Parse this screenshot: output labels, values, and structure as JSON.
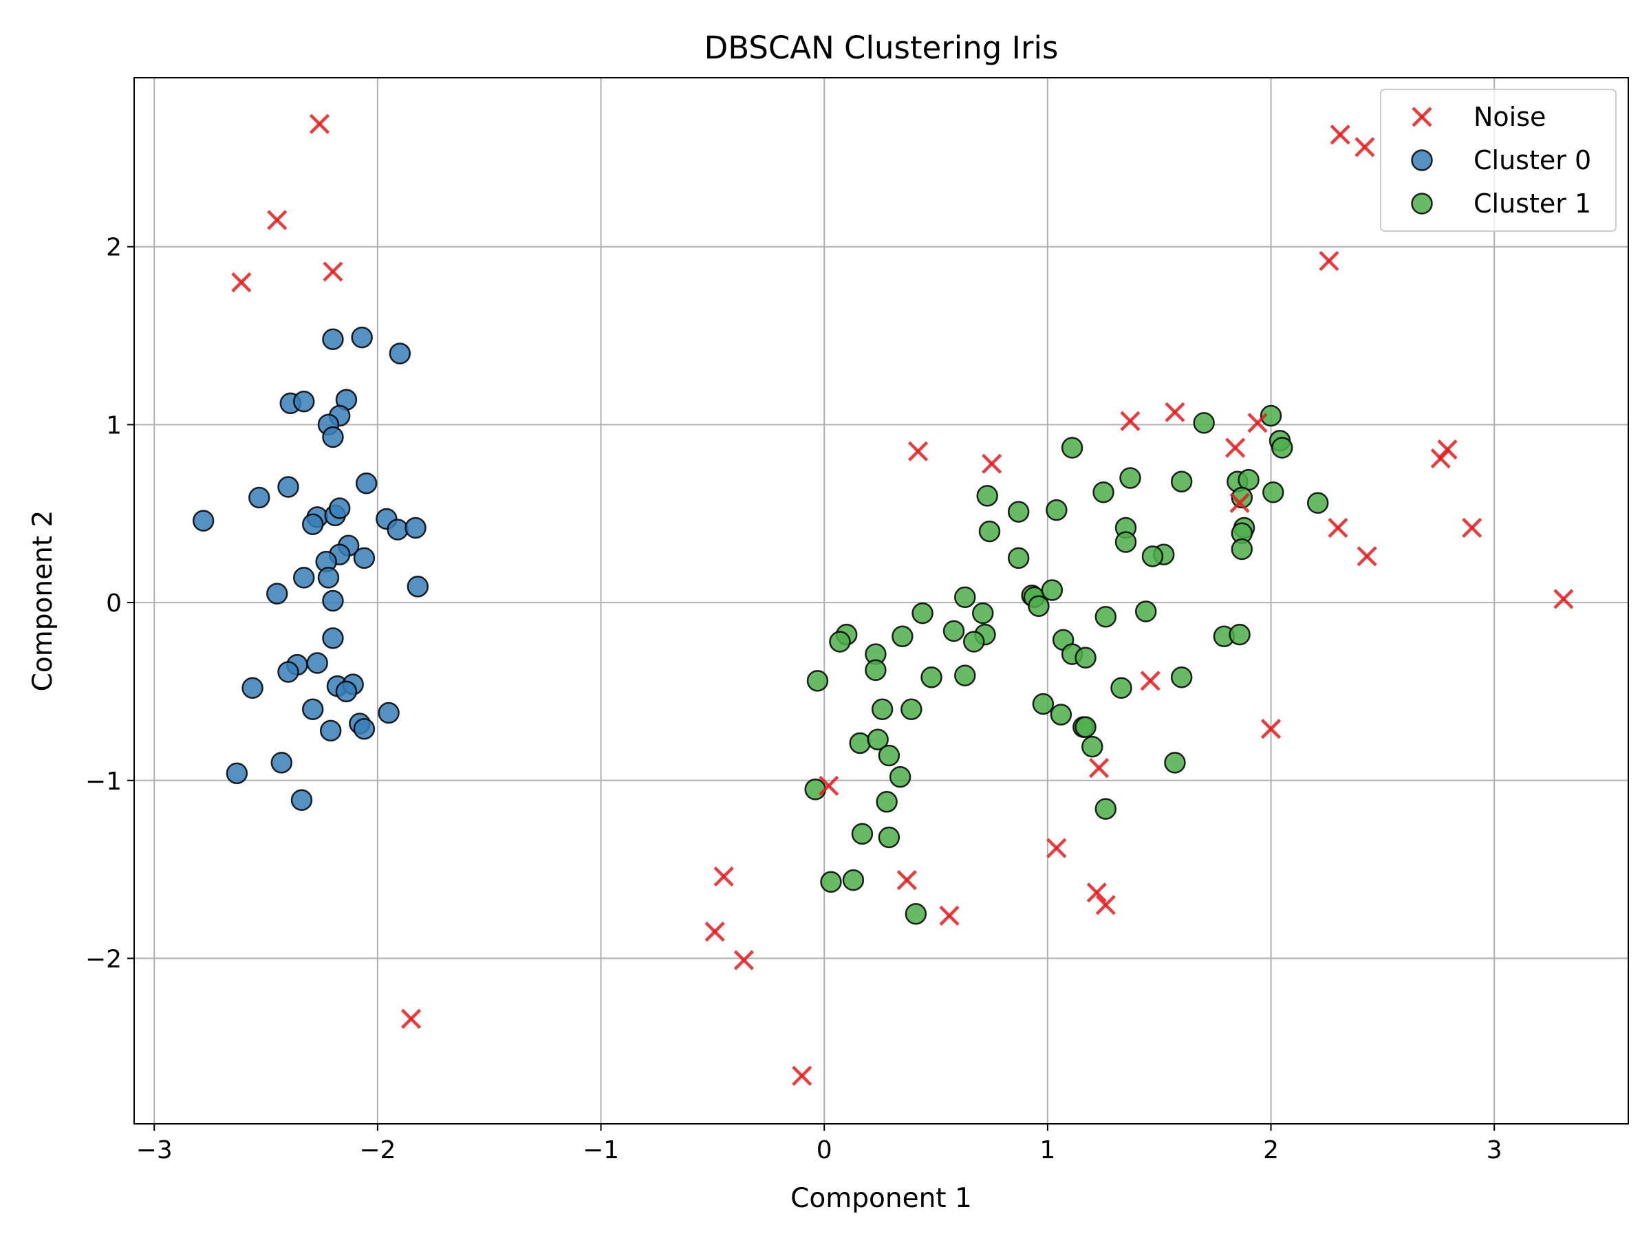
{
  "chart_data": {
    "type": "scatter",
    "title": "DBSCAN Clustering Iris",
    "xlabel": "Component 1",
    "ylabel": "Component 2",
    "xlim": [
      -3.09,
      3.6
    ],
    "ylim": [
      -2.93,
      2.95
    ],
    "xticks": [
      -3,
      -2,
      -1,
      0,
      1,
      2,
      3
    ],
    "yticks": [
      -2,
      -1,
      0,
      1,
      2
    ],
    "grid": true,
    "legend_position": "top-right",
    "series": [
      {
        "name": "Noise",
        "marker": "x",
        "color": "#e41a1c",
        "points": [
          [
            -2.26,
            2.69
          ],
          [
            -2.45,
            2.15
          ],
          [
            -2.61,
            1.8
          ],
          [
            -2.2,
            1.86
          ],
          [
            -1.85,
            -2.34
          ],
          [
            0.42,
            0.85
          ],
          [
            0.75,
            0.78
          ],
          [
            1.37,
            1.02
          ],
          [
            1.57,
            1.07
          ],
          [
            1.84,
            0.87
          ],
          [
            1.94,
            1.01
          ],
          [
            1.86,
            0.56
          ],
          [
            2.31,
            2.63
          ],
          [
            2.42,
            2.56
          ],
          [
            2.26,
            1.92
          ],
          [
            2.76,
            0.81
          ],
          [
            2.79,
            0.86
          ],
          [
            2.3,
            0.42
          ],
          [
            2.43,
            0.26
          ],
          [
            2.9,
            0.42
          ],
          [
            3.31,
            0.02
          ],
          [
            1.46,
            -0.44
          ],
          [
            2.0,
            -0.71
          ],
          [
            1.23,
            -0.93
          ],
          [
            0.02,
            -1.03
          ],
          [
            1.04,
            -1.38
          ],
          [
            -0.45,
            -1.54
          ],
          [
            0.37,
            -1.56
          ],
          [
            0.56,
            -1.76
          ],
          [
            1.22,
            -1.63
          ],
          [
            1.26,
            -1.7
          ],
          [
            -0.49,
            -1.85
          ],
          [
            -0.36,
            -2.01
          ],
          [
            -0.1,
            -2.66
          ]
        ]
      },
      {
        "name": "Cluster 0",
        "marker": "o",
        "color": "#377eb8",
        "points": [
          [
            -2.2,
            1.48
          ],
          [
            -2.07,
            1.49
          ],
          [
            -1.9,
            1.4
          ],
          [
            -2.39,
            1.12
          ],
          [
            -2.33,
            1.13
          ],
          [
            -2.14,
            1.14
          ],
          [
            -2.17,
            1.05
          ],
          [
            -2.22,
            1.0
          ],
          [
            -2.2,
            0.93
          ],
          [
            -2.05,
            0.67
          ],
          [
            -2.53,
            0.59
          ],
          [
            -2.4,
            0.65
          ],
          [
            -2.78,
            0.46
          ],
          [
            -2.27,
            0.48
          ],
          [
            -2.19,
            0.49
          ],
          [
            -2.17,
            0.53
          ],
          [
            -2.29,
            0.44
          ],
          [
            -1.96,
            0.47
          ],
          [
            -1.91,
            0.41
          ],
          [
            -1.83,
            0.42
          ],
          [
            -2.13,
            0.32
          ],
          [
            -2.17,
            0.27
          ],
          [
            -2.06,
            0.25
          ],
          [
            -2.23,
            0.23
          ],
          [
            -2.22,
            0.14
          ],
          [
            -2.33,
            0.14
          ],
          [
            -2.45,
            0.05
          ],
          [
            -2.2,
            0.01
          ],
          [
            -1.82,
            0.09
          ],
          [
            -2.2,
            -0.2
          ],
          [
            -2.36,
            -0.35
          ],
          [
            -2.4,
            -0.39
          ],
          [
            -2.27,
            -0.34
          ],
          [
            -2.18,
            -0.47
          ],
          [
            -2.11,
            -0.46
          ],
          [
            -2.14,
            -0.5
          ],
          [
            -2.56,
            -0.48
          ],
          [
            -2.29,
            -0.6
          ],
          [
            -2.08,
            -0.68
          ],
          [
            -2.06,
            -0.71
          ],
          [
            -1.95,
            -0.62
          ],
          [
            -2.21,
            -0.72
          ],
          [
            -2.63,
            -0.96
          ],
          [
            -2.43,
            -0.9
          ],
          [
            -2.34,
            -1.11
          ]
        ]
      },
      {
        "name": "Cluster 1",
        "marker": "o",
        "color": "#4daf4a",
        "points": [
          [
            1.7,
            1.01
          ],
          [
            2.0,
            1.05
          ],
          [
            2.04,
            0.91
          ],
          [
            2.05,
            0.87
          ],
          [
            1.11,
            0.87
          ],
          [
            1.37,
            0.7
          ],
          [
            1.6,
            0.68
          ],
          [
            1.85,
            0.68
          ],
          [
            1.9,
            0.69
          ],
          [
            2.01,
            0.62
          ],
          [
            1.25,
            0.62
          ],
          [
            0.73,
            0.6
          ],
          [
            1.87,
            0.59
          ],
          [
            2.21,
            0.56
          ],
          [
            1.04,
            0.52
          ],
          [
            0.87,
            0.51
          ],
          [
            1.35,
            0.42
          ],
          [
            1.88,
            0.42
          ],
          [
            1.87,
            0.39
          ],
          [
            0.74,
            0.4
          ],
          [
            1.35,
            0.34
          ],
          [
            1.87,
            0.3
          ],
          [
            1.52,
            0.27
          ],
          [
            1.47,
            0.26
          ],
          [
            0.87,
            0.25
          ],
          [
            0.93,
            0.04
          ],
          [
            0.94,
            0.03
          ],
          [
            1.02,
            0.07
          ],
          [
            0.63,
            0.03
          ],
          [
            0.96,
            -0.02
          ],
          [
            0.44,
            -0.06
          ],
          [
            0.71,
            -0.06
          ],
          [
            1.26,
            -0.08
          ],
          [
            1.44,
            -0.05
          ],
          [
            0.58,
            -0.16
          ],
          [
            0.72,
            -0.18
          ],
          [
            0.67,
            -0.22
          ],
          [
            0.35,
            -0.19
          ],
          [
            0.1,
            -0.18
          ],
          [
            0.07,
            -0.22
          ],
          [
            1.79,
            -0.19
          ],
          [
            1.86,
            -0.18
          ],
          [
            1.07,
            -0.21
          ],
          [
            1.11,
            -0.29
          ],
          [
            1.17,
            -0.31
          ],
          [
            0.23,
            -0.29
          ],
          [
            0.23,
            -0.38
          ],
          [
            -0.03,
            -0.44
          ],
          [
            0.48,
            -0.42
          ],
          [
            0.63,
            -0.41
          ],
          [
            1.6,
            -0.42
          ],
          [
            1.33,
            -0.48
          ],
          [
            0.26,
            -0.6
          ],
          [
            0.39,
            -0.6
          ],
          [
            0.98,
            -0.57
          ],
          [
            1.06,
            -0.63
          ],
          [
            1.16,
            -0.7
          ],
          [
            1.17,
            -0.7
          ],
          [
            0.16,
            -0.79
          ],
          [
            0.24,
            -0.77
          ],
          [
            0.29,
            -0.86
          ],
          [
            1.2,
            -0.81
          ],
          [
            1.57,
            -0.9
          ],
          [
            0.34,
            -0.98
          ],
          [
            0.28,
            -1.12
          ],
          [
            -0.04,
            -1.05
          ],
          [
            1.26,
            -1.16
          ],
          [
            0.17,
            -1.3
          ],
          [
            0.29,
            -1.32
          ],
          [
            0.03,
            -1.57
          ],
          [
            0.13,
            -1.56
          ],
          [
            0.41,
            -1.75
          ]
        ]
      }
    ]
  }
}
